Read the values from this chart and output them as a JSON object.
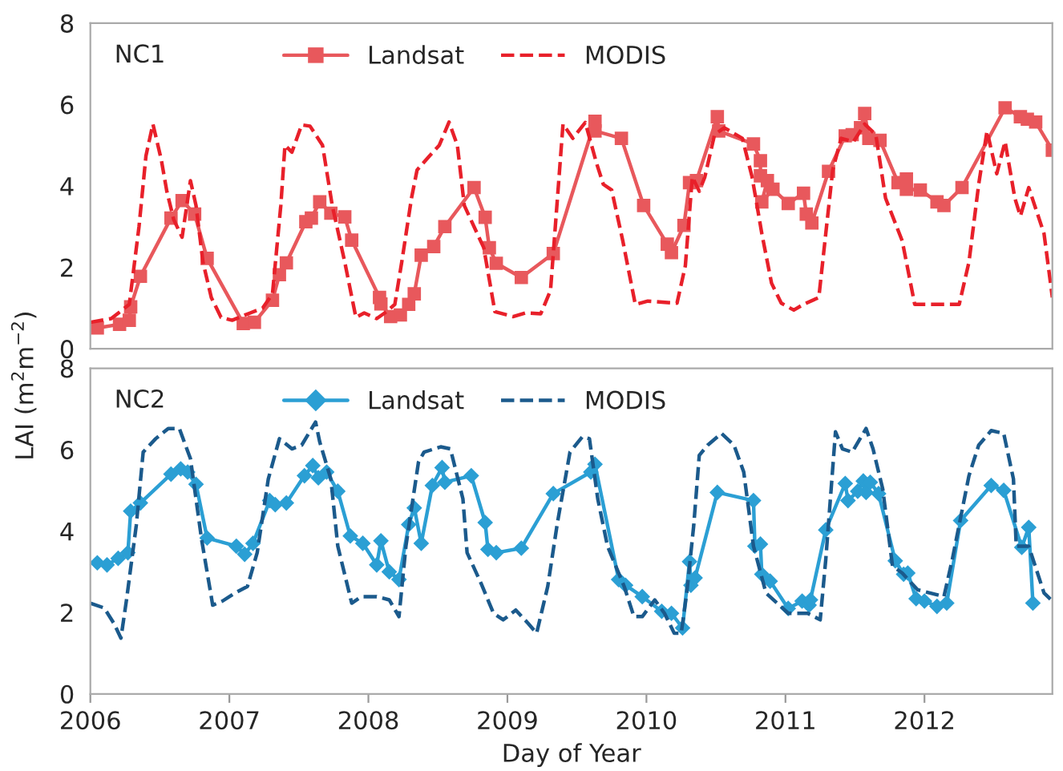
{
  "chart_data": [
    {
      "type": "line",
      "ylabel": "LAI (m$^{2}$m$^{−2}$)",
      "annotations": [
        "NC1"
      ],
      "xlim": [
        2006,
        2012.92
      ],
      "xticks": [
        2006,
        2007,
        2008,
        2009,
        2010,
        2011,
        2012
      ],
      "ylim": [
        0,
        8
      ],
      "yticks": [
        0,
        2,
        4,
        6,
        8
      ],
      "tick_labels": "y",
      "legend": "top",
      "grid": false,
      "series": [
        {
          "name": "Landsat",
          "color": "#e8585c",
          "marker": "square",
          "line_style": "solid",
          "x": [
            2006.05,
            2006.21,
            2006.28,
            2006.29,
            2006.36,
            2006.58,
            2006.66,
            2006.75,
            2006.84,
            2007.1,
            2007.18,
            2007.31,
            2007.36,
            2007.41,
            2007.55,
            2007.59,
            2007.65,
            2007.73,
            2007.83,
            2007.88,
            2008.08,
            2008.09,
            2008.16,
            2008.23,
            2008.29,
            2008.33,
            2008.38,
            2008.47,
            2008.55,
            2008.76,
            2008.84,
            2008.87,
            2008.92,
            2009.1,
            2009.33,
            2009.63,
            2009.63,
            2009.82,
            2009.98,
            2010.15,
            2010.18,
            2010.27,
            2010.31,
            2010.36,
            2010.51,
            2010.52,
            2010.77,
            2010.82,
            2010.82,
            2010.87,
            2010.83,
            2010.91,
            2011.02,
            2011.13,
            2011.15,
            2011.19,
            2011.31,
            2011.43,
            2011.48,
            2011.54,
            2011.57,
            2011.6,
            2011.68,
            2011.81,
            2011.87,
            2011.87,
            2011.97,
            2012.09,
            2012.14,
            2012.27,
            2012.58,
            2012.69,
            2012.74,
            2012.8,
            2012.92
          ],
          "values": [
            0.51,
            0.6,
            0.7,
            1.03,
            1.78,
            3.21,
            3.64,
            3.31,
            2.22,
            0.62,
            0.65,
            1.19,
            1.82,
            2.11,
            3.12,
            3.21,
            3.61,
            3.33,
            3.24,
            2.67,
            1.26,
            1.1,
            0.79,
            0.83,
            1.09,
            1.35,
            2.3,
            2.51,
            3.0,
            3.96,
            3.23,
            2.48,
            2.1,
            1.75,
            2.34,
            5.59,
            5.35,
            5.17,
            3.52,
            2.57,
            2.36,
            3.03,
            4.08,
            4.13,
            5.7,
            5.35,
            5.03,
            4.62,
            4.25,
            4.13,
            3.61,
            3.92,
            3.57,
            3.82,
            3.31,
            3.09,
            4.36,
            5.23,
            5.26,
            5.43,
            5.78,
            5.17,
            5.12,
            4.08,
            4.17,
            3.92,
            3.9,
            3.61,
            3.52,
            3.96,
            5.92,
            5.7,
            5.64,
            5.57,
            4.88
          ]
        },
        {
          "name": "MODIS",
          "color": "#e8202a",
          "marker": "none",
          "line_style": "dashed",
          "x": [
            2006.0,
            2006.15,
            2006.28,
            2006.35,
            2006.4,
            2006.45,
            2006.51,
            2006.55,
            2006.6,
            2006.66,
            2006.72,
            2006.76,
            2006.81,
            2006.87,
            2006.94,
            2007.02,
            2007.15,
            2007.24,
            2007.31,
            2007.37,
            2007.4,
            2007.45,
            2007.52,
            2007.58,
            2007.67,
            2007.74,
            2007.83,
            2007.91,
            2007.97,
            2008.06,
            2008.13,
            2008.19,
            2008.24,
            2008.31,
            2008.35,
            2008.44,
            2008.51,
            2008.58,
            2008.64,
            2008.69,
            2008.83,
            2008.91,
            2009.04,
            2009.13,
            2009.24,
            2009.31,
            2009.4,
            2009.47,
            2009.56,
            2009.64,
            2009.69,
            2009.75,
            2009.83,
            2009.92,
            2010.01,
            2010.22,
            2010.28,
            2010.33,
            2010.38,
            2010.42,
            2010.49,
            2010.56,
            2010.69,
            2010.76,
            2010.83,
            2010.9,
            2010.97,
            2011.06,
            2011.13,
            2011.24,
            2011.29,
            2011.34,
            2011.4,
            2011.49,
            2011.57,
            2011.65,
            2011.72,
            2011.84,
            2011.93,
            2012.11,
            2012.25,
            2012.32,
            2012.39,
            2012.45,
            2012.52,
            2012.58,
            2012.65,
            2012.69,
            2012.75,
            2012.86,
            2012.92
          ],
          "values": [
            0.65,
            0.74,
            1.09,
            3.0,
            4.74,
            5.52,
            4.65,
            3.87,
            3.17,
            2.74,
            4.13,
            3.52,
            2.13,
            1.26,
            0.77,
            0.7,
            0.88,
            1.0,
            1.35,
            3.52,
            5.0,
            4.83,
            5.5,
            5.47,
            5.0,
            3.52,
            2.13,
            0.77,
            0.88,
            0.74,
            0.91,
            1.09,
            2.13,
            3.7,
            4.39,
            4.74,
            5.0,
            5.57,
            5.0,
            3.52,
            2.48,
            0.91,
            0.79,
            0.88,
            0.86,
            1.43,
            5.52,
            5.17,
            5.56,
            4.57,
            4.04,
            3.9,
            2.65,
            1.09,
            1.17,
            1.12,
            2.04,
            4.22,
            3.87,
            4.22,
            5.26,
            5.43,
            5.17,
            4.22,
            2.83,
            1.61,
            1.12,
            0.95,
            1.09,
            1.26,
            2.83,
            4.39,
            5.17,
            5.09,
            5.52,
            5.26,
            3.7,
            2.65,
            1.09,
            1.09,
            1.09,
            2.13,
            4.04,
            5.35,
            4.3,
            5.09,
            3.7,
            3.26,
            3.96,
            2.83,
            1.26
          ]
        }
      ]
    },
    {
      "type": "line",
      "xlabel": "Day of Year",
      "annotations": [
        "NC2"
      ],
      "xlim": [
        2006,
        2012.92
      ],
      "xticks": [
        2006,
        2007,
        2008,
        2009,
        2010,
        2011,
        2012
      ],
      "ylim": [
        0,
        8
      ],
      "yticks": [
        0,
        2,
        4,
        6,
        8
      ],
      "legend": "top",
      "grid": false,
      "series": [
        {
          "name": "Landsat",
          "color": "#2b9fd4",
          "marker": "diamond",
          "line_style": "solid",
          "x": [
            2006.05,
            2006.12,
            2006.2,
            2006.27,
            2006.29,
            2006.36,
            2006.58,
            2006.65,
            2006.7,
            2006.76,
            2006.84,
            2007.05,
            2007.11,
            2007.17,
            2007.29,
            2007.33,
            2007.41,
            2007.54,
            2007.6,
            2007.64,
            2007.7,
            2007.78,
            2007.87,
            2007.96,
            2008.06,
            2008.09,
            2008.15,
            2008.22,
            2008.29,
            2008.33,
            2008.38,
            2008.46,
            2008.53,
            2008.55,
            2008.74,
            2008.84,
            2008.86,
            2008.92,
            2009.1,
            2009.33,
            2009.6,
            2009.63,
            2009.8,
            2009.85,
            2009.97,
            2010.11,
            2010.18,
            2010.26,
            2010.31,
            2010.32,
            2010.35,
            2010.51,
            2010.77,
            2010.78,
            2010.82,
            2010.83,
            2010.89,
            2011.02,
            2011.12,
            2011.17,
            2011.18,
            2011.29,
            2011.43,
            2011.45,
            2011.52,
            2011.56,
            2011.58,
            2011.61,
            2011.67,
            2011.79,
            2011.85,
            2011.88,
            2011.94,
            2012.0,
            2012.09,
            2012.16,
            2012.26,
            2012.48,
            2012.57,
            2012.7,
            2012.75,
            2012.78
          ],
          "values": [
            3.22,
            3.17,
            3.33,
            3.47,
            4.49,
            4.69,
            5.4,
            5.53,
            5.45,
            5.15,
            3.83,
            3.63,
            3.43,
            3.7,
            4.75,
            4.65,
            4.69,
            5.36,
            5.61,
            5.31,
            5.45,
            4.98,
            3.88,
            3.7,
            3.17,
            3.76,
            3.0,
            2.81,
            4.16,
            4.57,
            3.7,
            5.12,
            5.56,
            5.2,
            5.36,
            4.21,
            3.55,
            3.47,
            3.58,
            4.92,
            5.45,
            5.64,
            2.81,
            2.67,
            2.39,
            2.03,
            1.98,
            1.62,
            3.25,
            2.67,
            2.85,
            4.95,
            4.75,
            3.63,
            3.68,
            2.94,
            2.77,
            2.1,
            2.28,
            2.18,
            2.31,
            4.03,
            5.17,
            4.75,
            4.98,
            5.23,
            4.95,
            5.2,
            4.92,
            3.27,
            2.94,
            2.97,
            2.34,
            2.28,
            2.15,
            2.23,
            4.26,
            5.12,
            5.0,
            3.6,
            4.09,
            2.23
          ]
        },
        {
          "name": "MODIS",
          "color": "#1b5a8c",
          "marker": "none",
          "line_style": "dashed",
          "x": [
            2006.0,
            2006.1,
            2006.17,
            2006.22,
            2006.26,
            2006.33,
            2006.38,
            2006.47,
            2006.56,
            2006.64,
            2006.72,
            2006.8,
            2006.88,
            2006.95,
            2007.04,
            2007.13,
            2007.2,
            2007.28,
            2007.36,
            2007.45,
            2007.52,
            2007.62,
            2007.65,
            2007.73,
            2007.78,
            2007.88,
            2007.95,
            2008.06,
            2008.15,
            2008.22,
            2008.27,
            2008.36,
            2008.4,
            2008.52,
            2008.59,
            2008.68,
            2008.71,
            2008.81,
            2008.9,
            2008.97,
            2009.06,
            2009.15,
            2009.21,
            2009.29,
            2009.36,
            2009.45,
            2009.54,
            2009.59,
            2009.65,
            2009.72,
            2009.84,
            2009.91,
            2009.97,
            2010.06,
            2010.13,
            2010.2,
            2010.25,
            2010.29,
            2010.34,
            2010.38,
            2010.44,
            2010.54,
            2010.63,
            2010.7,
            2010.77,
            2010.86,
            2011.02,
            2011.16,
            2011.25,
            2011.29,
            2011.36,
            2011.41,
            2011.48,
            2011.58,
            2011.63,
            2011.7,
            2011.77,
            2011.84,
            2011.95,
            2012.14,
            2012.2,
            2012.32,
            2012.39,
            2012.48,
            2012.57,
            2012.64,
            2012.66,
            2012.75,
            2012.86,
            2012.92
          ],
          "values": [
            2.23,
            2.11,
            1.73,
            1.37,
            2.31,
            4.13,
            5.94,
            6.27,
            6.52,
            6.52,
            5.78,
            3.8,
            2.18,
            2.28,
            2.48,
            2.64,
            3.47,
            5.28,
            6.27,
            6.02,
            6.11,
            6.68,
            6.19,
            5.28,
            3.63,
            2.23,
            2.39,
            2.39,
            2.31,
            1.9,
            3.63,
            5.69,
            5.94,
            6.07,
            6.02,
            4.79,
            3.47,
            2.72,
            1.98,
            1.82,
            2.06,
            1.73,
            1.49,
            2.64,
            4.21,
            5.94,
            6.32,
            6.27,
            4.79,
            3.63,
            2.64,
            1.9,
            1.9,
            2.31,
            1.98,
            1.49,
            1.49,
            2.48,
            4.13,
            5.86,
            6.11,
            6.4,
            6.11,
            5.45,
            3.63,
            2.48,
            1.98,
            1.98,
            1.82,
            3.3,
            6.44,
            6.02,
            5.94,
            6.52,
            6.02,
            5.03,
            3.14,
            2.97,
            2.56,
            2.39,
            3.3,
            5.36,
            6.11,
            6.47,
            6.4,
            5.28,
            3.63,
            3.63,
            2.48,
            2.28
          ]
        }
      ]
    }
  ]
}
